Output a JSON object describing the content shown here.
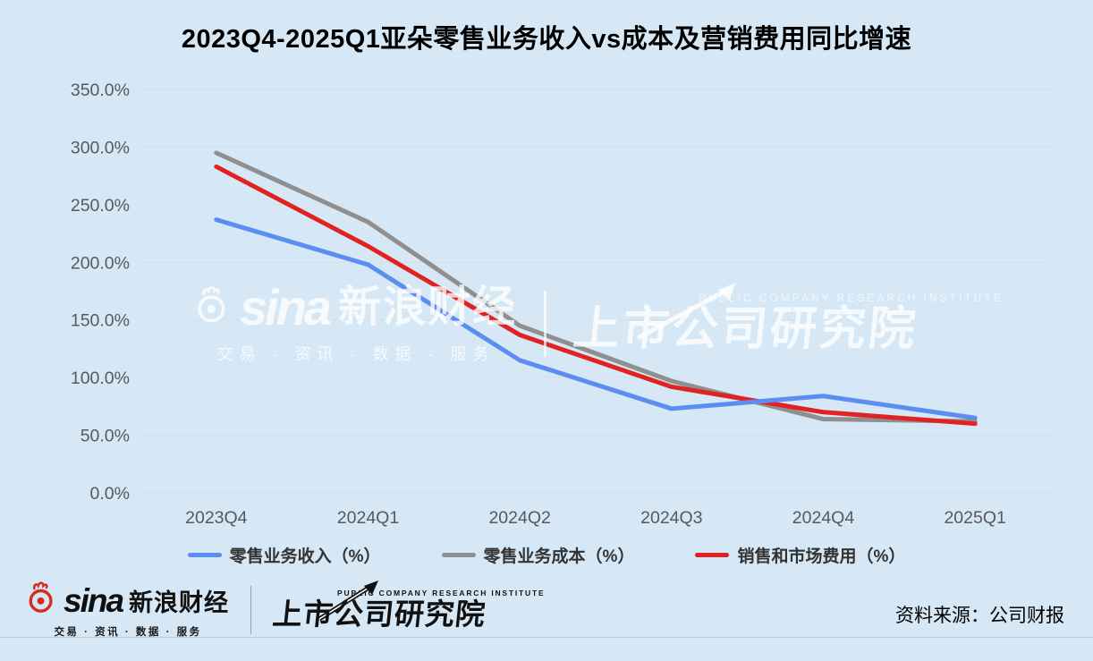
{
  "title": "2023Q4-2025Q1亚朵零售业务收入vs成本及营销费用同比增速",
  "colors": {
    "background": "#d6e8f5",
    "revenue_line": "#5c8df0",
    "cost_line": "#8f8f8f",
    "marketing_line": "#e02222",
    "gridline": "#d9dde1",
    "axis_text": "#58595b"
  },
  "chart_data": {
    "type": "line",
    "categories": [
      "2023Q4",
      "2024Q1",
      "2024Q2",
      "2024Q3",
      "2024Q4",
      "2025Q1"
    ],
    "series": [
      {
        "name": "零售业务收入（%）",
        "color": "#5c8df0",
        "values": [
          237,
          198,
          115,
          73,
          84,
          65
        ]
      },
      {
        "name": "零售业务成本（%）",
        "color": "#8f8f8f",
        "values": [
          295,
          235,
          145,
          97,
          64,
          62
        ]
      },
      {
        "name": "销售和市场费用（%）",
        "color": "#e02222",
        "values": [
          283,
          214,
          137,
          92,
          70,
          60
        ]
      }
    ],
    "ylim": [
      0,
      350
    ],
    "ytick_labels": [
      "0.0%",
      "50.0%",
      "100.0%",
      "150.0%",
      "200.0%",
      "250.0%",
      "300.0%",
      "350.0%"
    ],
    "grid": true,
    "legend_position": "bottom"
  },
  "watermark": {
    "sina": "sina",
    "sina_cn": "新浪财经",
    "tagline": "交易 · 资讯 · 数据 · 服务",
    "institute_en": "PUBLIC COMPANY RESEARCH INSTITUTE",
    "institute_cn": "上市公司研究院"
  },
  "footer": {
    "sina": "sina",
    "sina_cn": "新浪财经",
    "tagline": "交易 · 资讯 · 数据 · 服务",
    "institute_en": "PUBLIC COMPANY RESEARCH INSTITUTE",
    "institute_cn": "上市公司研究院",
    "source": "资料来源：公司财报"
  }
}
